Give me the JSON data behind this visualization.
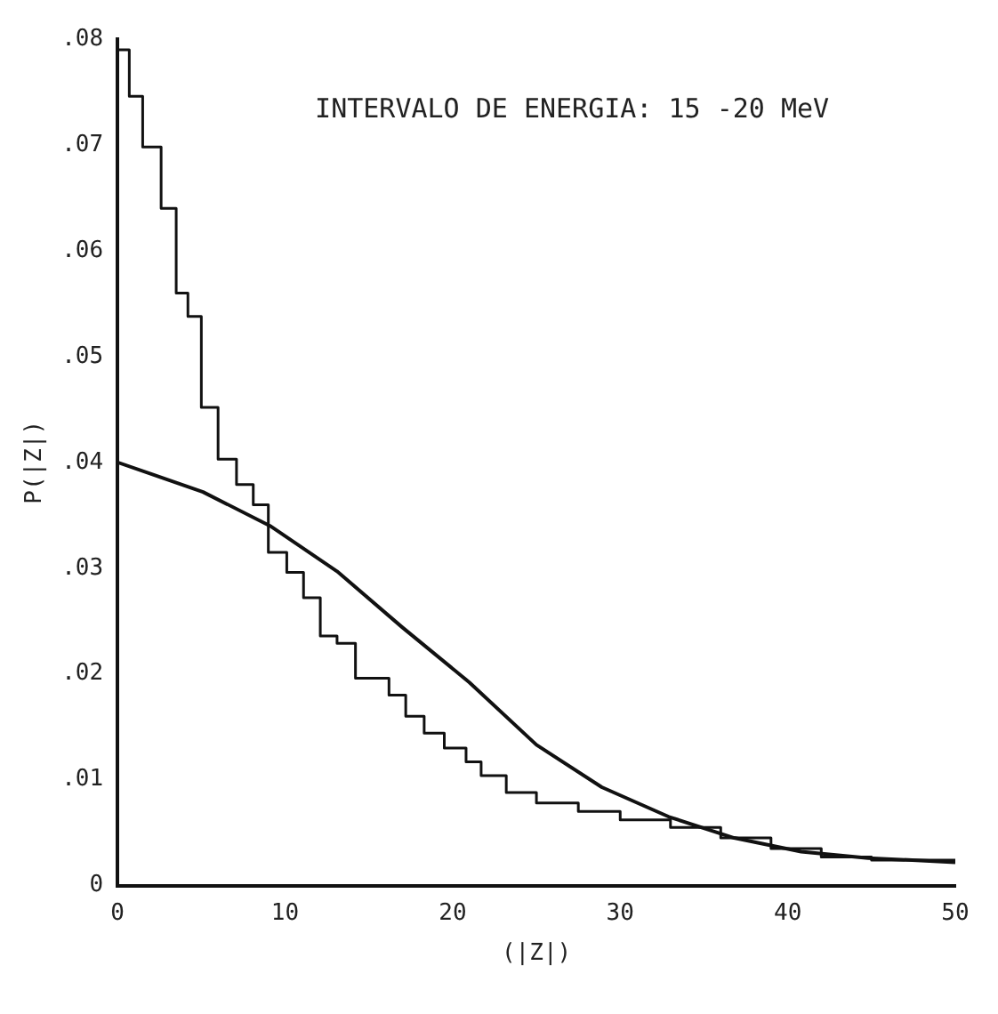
{
  "chart_data": {
    "type": "line",
    "xlabel": "(|Z|)",
    "ylabel": "P(|Z|)",
    "annotations": [
      "INTERVALO DE ENERGIA: 15 -20 MeV"
    ],
    "xlim": [
      0,
      50
    ],
    "xticks": [
      0,
      10,
      20,
      30,
      40,
      50
    ],
    "ylim": [
      0,
      0.08
    ],
    "yticks": [
      {
        "value": 0,
        "label": "0"
      },
      {
        "value": 0.01,
        "label": ".01"
      },
      {
        "value": 0.02,
        "label": ".02"
      },
      {
        "value": 0.03,
        "label": ".03"
      },
      {
        "value": 0.04,
        "label": ".04"
      },
      {
        "value": 0.05,
        "label": ".05"
      },
      {
        "value": 0.06,
        "label": ".06"
      },
      {
        "value": 0.07,
        "label": ".07"
      },
      {
        "value": 0.08,
        "label": ".08"
      }
    ],
    "grid": false,
    "legend": false,
    "marker": "none",
    "series": [
      {
        "type": "step",
        "color": "#111111",
        "x": [
          0,
          0.7,
          1.5,
          2.6,
          3.5,
          4.2,
          5.0,
          6.0,
          7.1,
          8.1,
          9.0,
          10.1,
          11.1,
          12.1,
          13.1,
          14.2,
          16.2,
          17.2,
          18.3,
          19.5,
          20.8,
          21.7,
          23.2,
          25,
          27.5,
          30,
          33,
          36,
          39,
          42,
          45,
          50
        ],
        "values": [
          0.079,
          0.0746,
          0.0698,
          0.064,
          0.056,
          0.0538,
          0.0452,
          0.0403,
          0.0379,
          0.036,
          0.0315,
          0.0296,
          0.0272,
          0.0236,
          0.0229,
          0.0196,
          0.018,
          0.016,
          0.0144,
          0.013,
          0.0117,
          0.0104,
          0.0088,
          0.0078,
          0.007,
          0.0062,
          0.0055,
          0.0045,
          0.0035,
          0.0027,
          0.0024,
          0.0022
        ]
      },
      {
        "type": "line",
        "color": "#111111",
        "x": [
          0,
          2.2,
          5.1,
          9.1,
          13.1,
          17,
          21,
          25,
          28.9,
          32.9,
          36.8,
          40.8,
          44.8,
          50
        ],
        "values": [
          0.04,
          0.0388,
          0.0372,
          0.034,
          0.0297,
          0.0244,
          0.0192,
          0.0133,
          0.0093,
          0.0065,
          0.0045,
          0.0032,
          0.0026,
          0.0022
        ]
      }
    ]
  }
}
